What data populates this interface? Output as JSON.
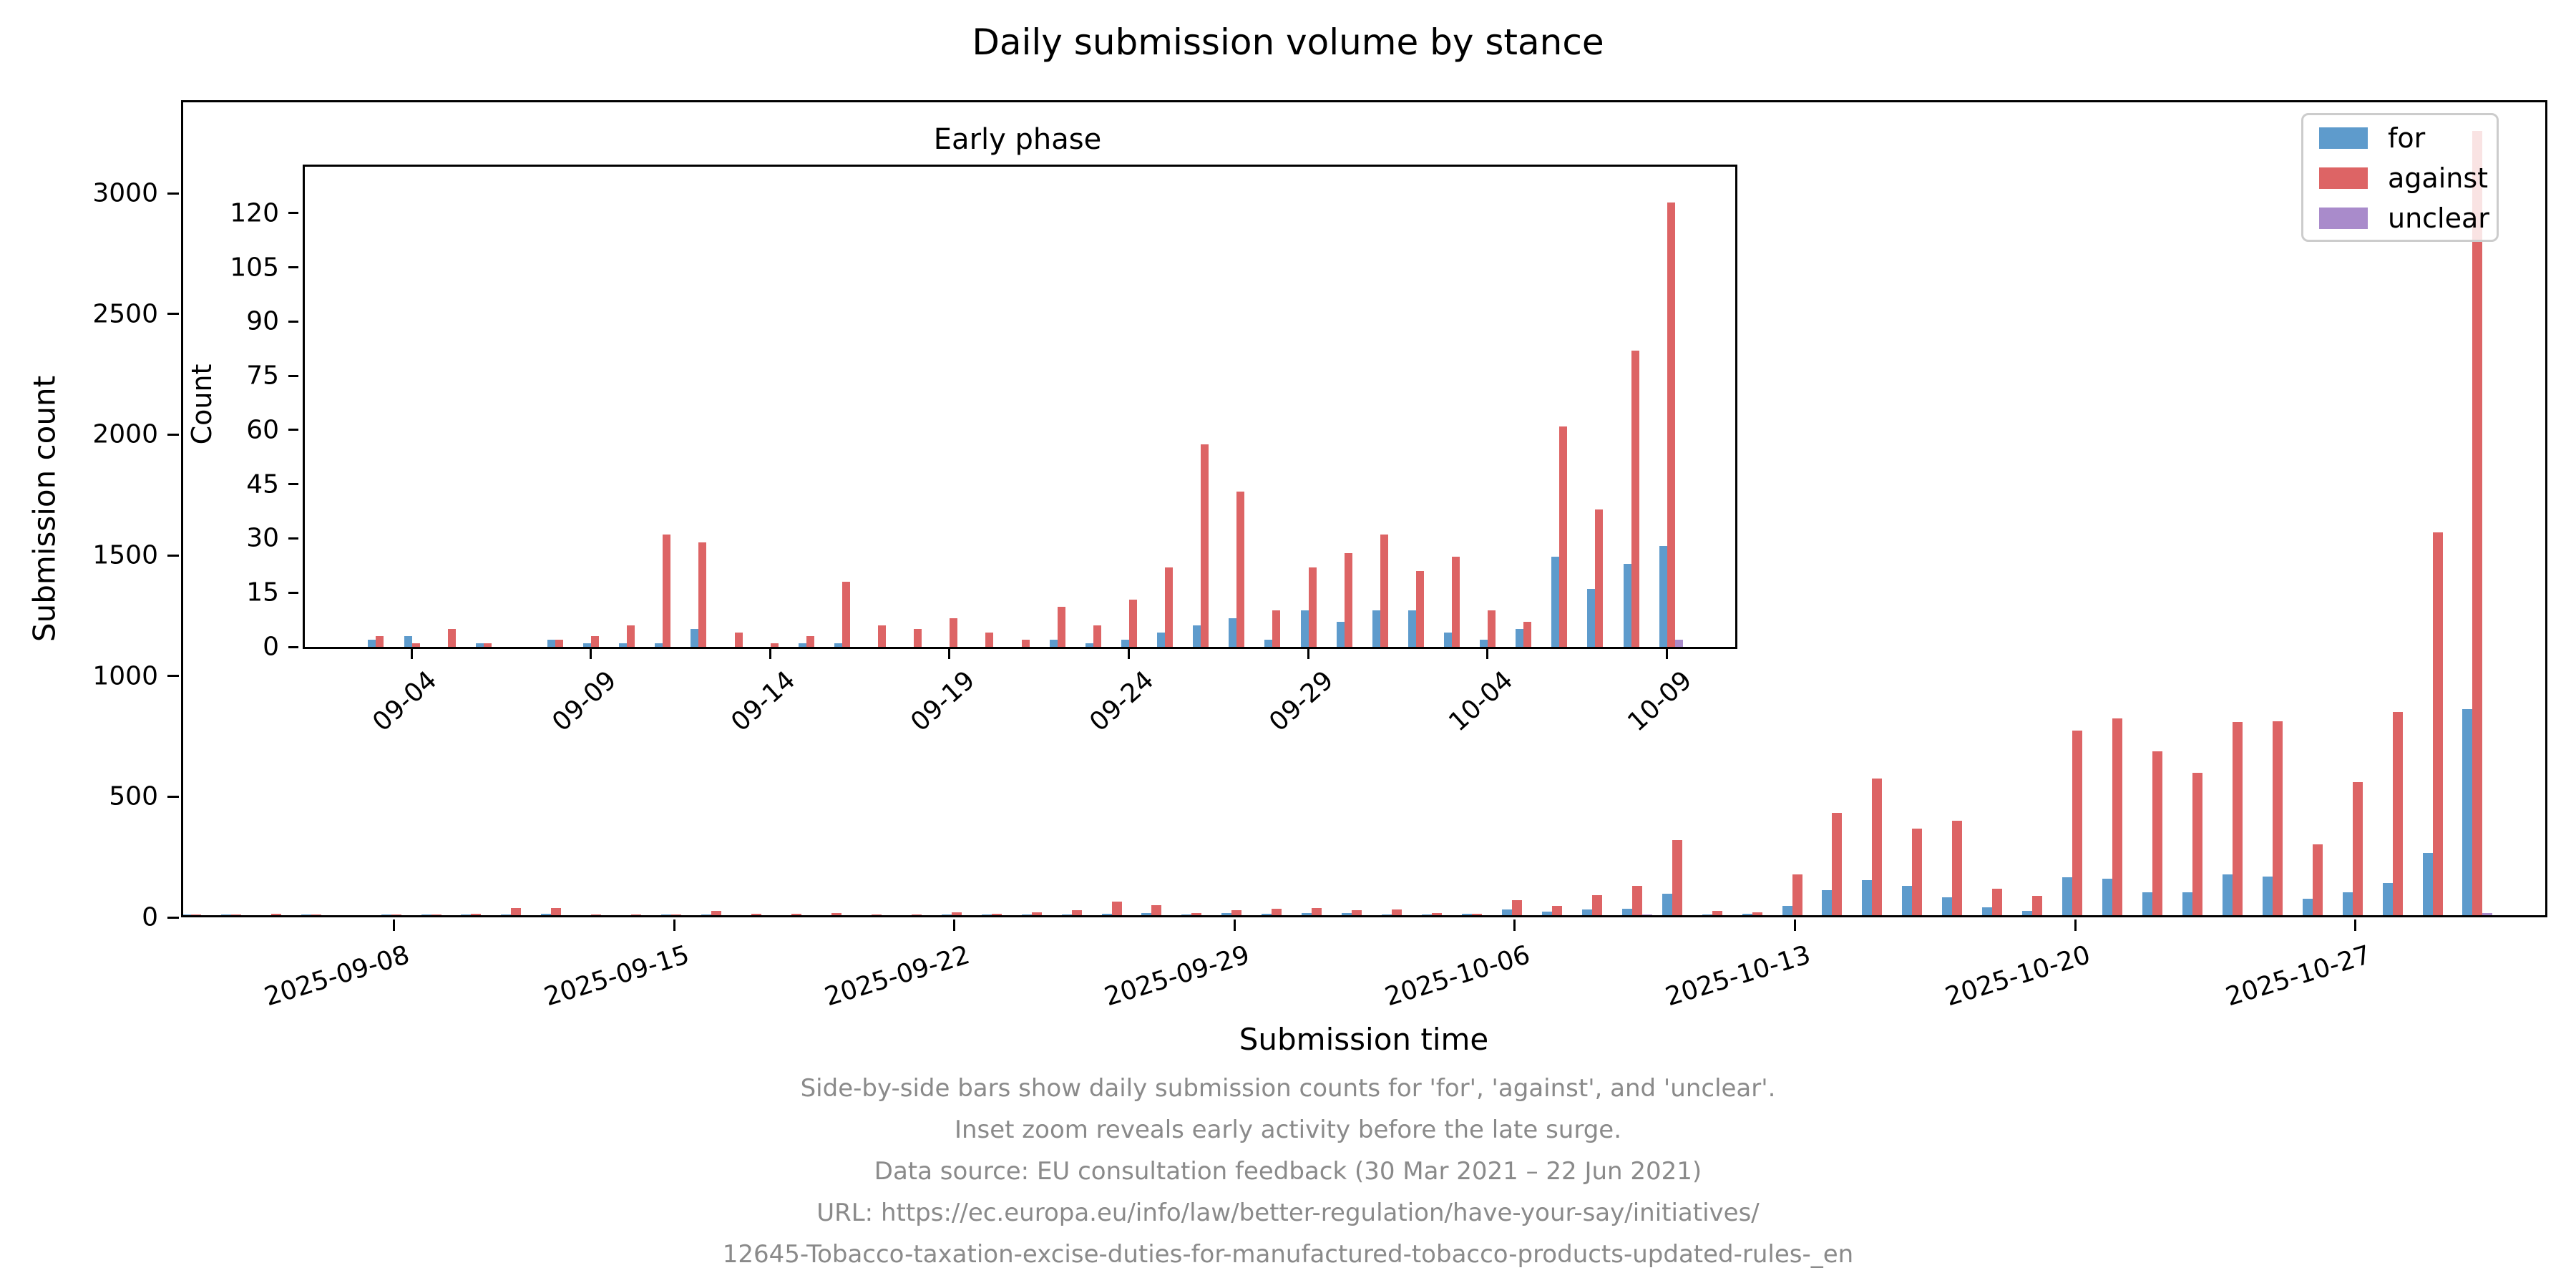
{
  "title": "Daily submission volume by stance",
  "axes": {
    "main": {
      "xlabel": "Submission time",
      "ylabel": "Submission count",
      "x_tick_dates": [
        "2025-09-08",
        "2025-09-15",
        "2025-09-22",
        "2025-09-29",
        "2025-10-06",
        "2025-10-13",
        "2025-10-20",
        "2025-10-27"
      ],
      "y_ticks": [
        0,
        500,
        1000,
        1500,
        2000,
        2500,
        3000
      ],
      "ylim": [
        0,
        3386
      ]
    },
    "inset": {
      "title": "Early phase",
      "ylabel": "Count",
      "x_tick_labels": [
        "09-04",
        "09-09",
        "09-14",
        "09-19",
        "09-24",
        "09-29",
        "10-04",
        "10-09"
      ],
      "y_ticks": [
        0,
        15,
        30,
        45,
        60,
        75,
        90,
        105,
        120
      ],
      "ylim": [
        0,
        134
      ],
      "last_date": "2025-10-09"
    }
  },
  "legend": {
    "position": "upper right",
    "items": [
      {
        "label": "for",
        "color": "#5E9BCC"
      },
      {
        "label": "against",
        "color": "#DD6465"
      },
      {
        "label": "unclear",
        "color": "#A98BCB"
      }
    ]
  },
  "caption": {
    "lines": [
      "Side-by-side bars show daily submission counts for 'for', 'against', and 'unclear'.",
      "Inset zoom reveals early activity before the late surge.",
      "Data source: EU consultation feedback (30 Mar 2021 – 22 Jun 2021)",
      "URL: https://ec.europa.eu/info/law/better-regulation/have-your-say/initiatives/",
      "12645-Tobacco-taxation-excise-duties-for-manufactured-tobacco-products-updated-rules-_en"
    ]
  },
  "chart_data": {
    "type": "bar",
    "title": "Daily submission volume by stance",
    "xlabel": "Submission time",
    "ylabel": "Submission count",
    "ylim": [
      0,
      3386
    ],
    "legend_position": "upper right",
    "grid": false,
    "x": [
      "2025-09-03",
      "2025-09-04",
      "2025-09-05",
      "2025-09-06",
      "2025-09-07",
      "2025-09-08",
      "2025-09-09",
      "2025-09-10",
      "2025-09-11",
      "2025-09-12",
      "2025-09-13",
      "2025-09-14",
      "2025-09-15",
      "2025-09-16",
      "2025-09-17",
      "2025-09-18",
      "2025-09-19",
      "2025-09-20",
      "2025-09-21",
      "2025-09-22",
      "2025-09-23",
      "2025-09-24",
      "2025-09-25",
      "2025-09-26",
      "2025-09-27",
      "2025-09-28",
      "2025-09-29",
      "2025-09-30",
      "2025-10-01",
      "2025-10-02",
      "2025-10-03",
      "2025-10-04",
      "2025-10-05",
      "2025-10-06",
      "2025-10-07",
      "2025-10-08",
      "2025-10-09",
      "2025-10-10",
      "2025-10-11",
      "2025-10-12",
      "2025-10-13",
      "2025-10-14",
      "2025-10-15",
      "2025-10-16",
      "2025-10-17",
      "2025-10-18",
      "2025-10-19",
      "2025-10-20",
      "2025-10-21",
      "2025-10-22",
      "2025-10-23",
      "2025-10-24",
      "2025-10-25",
      "2025-10-26",
      "2025-10-27",
      "2025-10-28",
      "2025-10-29",
      "2025-10-30"
    ],
    "series": [
      {
        "name": "for",
        "color": "#5E9BCC",
        "values": [
          2,
          3,
          0,
          1,
          0,
          2,
          1,
          1,
          1,
          5,
          0,
          0,
          1,
          1,
          0,
          0,
          0,
          0,
          0,
          2,
          1,
          2,
          4,
          6,
          8,
          2,
          10,
          7,
          10,
          10,
          4,
          2,
          5,
          25,
          16,
          23,
          28,
          89,
          3,
          5,
          38,
          105,
          145,
          121,
          74,
          33,
          18,
          157,
          150,
          95,
          96,
          170,
          161,
          69,
          96,
          134,
          259,
          854
        ]
      },
      {
        "name": "against",
        "color": "#DD6465",
        "values": [
          3,
          1,
          5,
          1,
          0,
          2,
          3,
          6,
          31,
          29,
          4,
          1,
          3,
          18,
          6,
          5,
          8,
          4,
          2,
          11,
          6,
          13,
          22,
          56,
          43,
          10,
          22,
          26,
          31,
          21,
          25,
          10,
          7,
          61,
          38,
          82,
          123,
          312,
          19,
          12,
          169,
          425,
          565,
          360,
          391,
          109,
          80,
          765,
          816,
          680,
          590,
          800,
          804,
          293,
          553,
          842,
          1585,
          3250
        ]
      },
      {
        "name": "unclear",
        "color": "#A98BCB",
        "values": [
          0,
          0,
          0,
          0,
          0,
          0,
          0,
          0,
          0,
          0,
          0,
          0,
          0,
          0,
          0,
          0,
          0,
          0,
          0,
          0,
          0,
          0,
          0,
          0,
          0,
          0,
          0,
          0,
          0,
          0,
          0,
          0,
          0,
          0,
          0,
          0,
          2,
          0,
          0,
          0,
          0,
          0,
          0,
          0,
          0,
          0,
          0,
          0,
          0,
          0,
          0,
          0,
          0,
          0,
          0,
          0,
          0,
          9
        ]
      }
    ],
    "inset_chart": {
      "type": "bar",
      "title": "Early phase",
      "ylabel": "Count",
      "ylim": [
        0,
        134
      ],
      "x_range": [
        "2025-09-03",
        "2025-10-09"
      ],
      "note": "zoom of the same series restricted to the early phase"
    }
  }
}
